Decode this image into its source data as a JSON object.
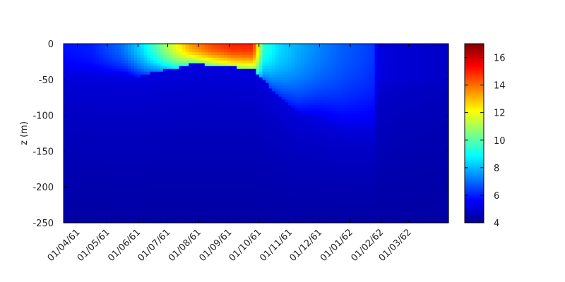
{
  "chart_data": {
    "type": "heatmap",
    "title": "",
    "xlabel": "",
    "ylabel": "z (m)",
    "x_ticks": [
      "01/04/61",
      "01/05/61",
      "01/06/61",
      "01/07/61",
      "01/08/61",
      "01/09/61",
      "01/10/61",
      "01/11/61",
      "01/12/61",
      "01/01/62",
      "01/02/62",
      "01/03/62"
    ],
    "x_range": [
      "1961-03-18",
      "1962-04-10"
    ],
    "y_ticks": [
      0,
      -50,
      -100,
      -150,
      -200,
      -250
    ],
    "ylim": [
      -250,
      0
    ],
    "colorbar": {
      "ticks": [
        4,
        6,
        8,
        10,
        12,
        14,
        16
      ],
      "range": [
        4,
        17
      ],
      "palette": [
        "#00008f",
        "#0000ff",
        "#0080ff",
        "#00ffff",
        "#80ff80",
        "#ffff00",
        "#ff8000",
        "#ff0000",
        "#800000"
      ]
    },
    "profiles": [
      {
        "date": "1961-03-18",
        "surface": 5.8,
        "mld": 40,
        "bottom": 4.3
      },
      {
        "date": "1961-04-15",
        "surface": 6.0,
        "mld": 42,
        "bottom": 4.3
      },
      {
        "date": "1961-05-15",
        "surface": 7.0,
        "mld": 45,
        "bottom": 4.3
      },
      {
        "date": "1961-06-05",
        "surface": 8.5,
        "mld": 45,
        "bottom": 4.3
      },
      {
        "date": "1961-06-20",
        "surface": 10.0,
        "mld": 38,
        "bottom": 4.3
      },
      {
        "date": "1961-07-10",
        "surface": 12.0,
        "mld": 35,
        "bottom": 4.3
      },
      {
        "date": "1961-07-25",
        "surface": 13.5,
        "mld": 28,
        "bottom": 4.3
      },
      {
        "date": "1961-08-15",
        "surface": 14.5,
        "mld": 30,
        "bottom": 4.3
      },
      {
        "date": "1961-09-05",
        "surface": 15.0,
        "mld": 33,
        "bottom": 4.3
      },
      {
        "date": "1961-09-25",
        "surface": 15.0,
        "mld": 35,
        "bottom": 4.3
      },
      {
        "date": "1961-10-05",
        "surface": 9.5,
        "mld": 50,
        "bottom": 4.3
      },
      {
        "date": "1961-10-20",
        "surface": 8.5,
        "mld": 72,
        "bottom": 4.3
      },
      {
        "date": "1961-11-10",
        "surface": 7.8,
        "mld": 95,
        "bottom": 4.3
      },
      {
        "date": "1961-12-05",
        "surface": 7.2,
        "mld": 105,
        "bottom": 4.3
      },
      {
        "date": "1961-12-25",
        "surface": 6.8,
        "mld": 115,
        "bottom": 4.3
      },
      {
        "date": "1962-01-15",
        "surface": 6.5,
        "mld": 115,
        "bottom": 4.3
      },
      {
        "date": "1962-01-26",
        "surface": 6.3,
        "mld": 115,
        "bottom": 4.3
      },
      {
        "date": "1962-01-28",
        "surface": 5.2,
        "mld": 50,
        "bottom": 4.3
      },
      {
        "date": "1962-02-20",
        "surface": 5.0,
        "mld": 50,
        "bottom": 4.3
      },
      {
        "date": "1962-03-20",
        "surface": 4.9,
        "mld": 50,
        "bottom": 4.3
      },
      {
        "date": "1962-04-10",
        "surface": 4.8,
        "mld": 50,
        "bottom": 4.3
      }
    ],
    "grid": false,
    "legend": "colorbar-right"
  }
}
